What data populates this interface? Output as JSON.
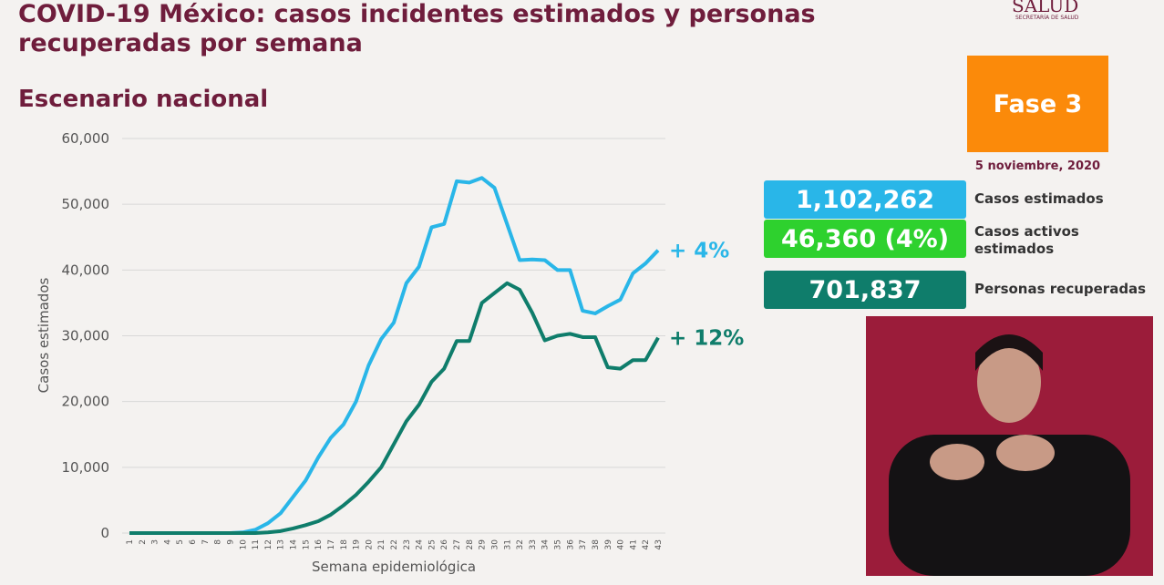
{
  "header": {
    "title": "COVID-19 México: casos incidentes estimados y personas recuperadas por semana",
    "logo": "SALUD",
    "logo_sub": "SECRETARÍA DE SALUD"
  },
  "chart_data": {
    "type": "line",
    "title": "Escenario nacional",
    "xlabel": "Semana epidemiológica",
    "ylabel": "Casos estimados",
    "x": [
      1,
      2,
      3,
      4,
      5,
      6,
      7,
      8,
      9,
      10,
      11,
      12,
      13,
      14,
      15,
      16,
      17,
      18,
      19,
      20,
      21,
      22,
      23,
      24,
      25,
      26,
      27,
      28,
      29,
      30,
      31,
      32,
      33,
      34,
      35,
      36,
      37,
      38,
      39,
      40,
      41,
      42,
      43
    ],
    "xlim": [
      1,
      43
    ],
    "ylim": [
      0,
      60000
    ],
    "yticks": [
      0,
      {
        "value": 10000,
        "label": "10,000"
      },
      {
        "value": 20000,
        "label": "20,000"
      },
      {
        "value": 30000,
        "label": "30,000"
      },
      {
        "value": 40000,
        "label": "40,000"
      },
      {
        "value": 50000,
        "label": "50,000"
      },
      {
        "value": 60000,
        "label": "60,000"
      }
    ],
    "grid": true,
    "series": [
      {
        "color": "#29b6e8",
        "label": "+ 4%",
        "values": [
          0,
          0,
          0,
          0,
          0,
          0,
          0,
          0,
          0,
          100,
          500,
          1500,
          3000,
          5500,
          8000,
          11500,
          14500,
          16500,
          20000,
          25500,
          29500,
          32000,
          38000,
          40500,
          46500,
          47000,
          53500,
          53300,
          54000,
          52500,
          47000,
          41500,
          41600,
          41500,
          40000,
          40000,
          33800,
          33400,
          34500,
          35500,
          39500,
          41000,
          43000
        ]
      },
      {
        "color": "#0f7d6b",
        "label": "+ 12%",
        "values": [
          0,
          0,
          0,
          0,
          0,
          0,
          0,
          0,
          0,
          0,
          0,
          100,
          300,
          700,
          1200,
          1800,
          2800,
          4200,
          5800,
          7800,
          10000,
          13500,
          17000,
          19500,
          23000,
          25000,
          29200,
          29200,
          35000,
          36500,
          38000,
          37000,
          33500,
          29300,
          30000,
          30300,
          29800,
          29800,
          25200,
          25000,
          26300,
          26300,
          29700
        ]
      }
    ]
  },
  "panel": {
    "phase": "Fase 3",
    "date": "5 noviembre, 2020",
    "stats": [
      {
        "value": "1,102,262",
        "label": "Casos estimados",
        "color": "#29b6e8"
      },
      {
        "value": "46,360 (4%)",
        "label": "Casos activos estimados",
        "color": "#2ed12e"
      },
      {
        "value": "701,837",
        "label": "Personas recuperadas",
        "color": "#0f7d6b"
      }
    ]
  }
}
